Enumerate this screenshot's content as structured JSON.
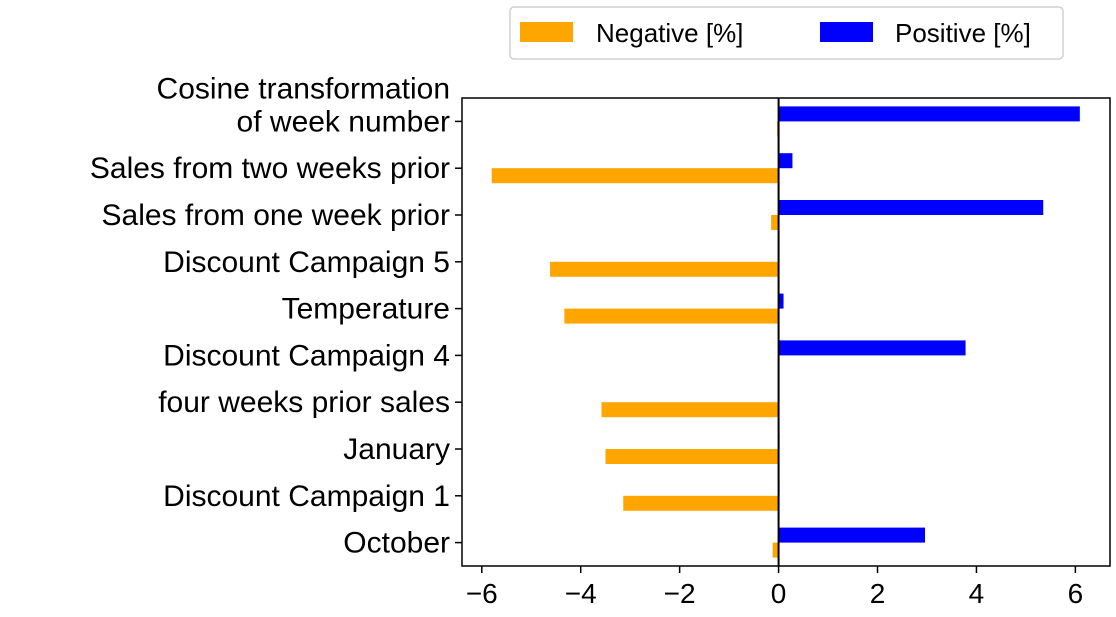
{
  "chart_data": {
    "type": "bar",
    "orientation": "horizontal",
    "categories": [
      "Cosine transformation\nof week number",
      "Sales from two weeks prior",
      "Sales from one week prior",
      "Discount Campaign 5",
      "Temperature",
      "Discount Campaign 4",
      "four weeks prior sales",
      "January",
      "Discount Campaign 1",
      "October"
    ],
    "series": [
      {
        "name": "Negative [%]",
        "color": "#FFA500",
        "values": [
          -0.03,
          -5.8,
          -0.15,
          -4.62,
          -4.33,
          0.0,
          -3.58,
          -3.5,
          -3.14,
          -0.12
        ]
      },
      {
        "name": "Positive [%]",
        "color": "#0000FF",
        "values": [
          6.09,
          0.28,
          5.35,
          0.0,
          0.1,
          3.78,
          0.0,
          0.02,
          0.02,
          2.96
        ]
      }
    ],
    "xlim": [
      -6.4,
      6.7
    ],
    "xticks": [
      -6,
      -4,
      -2,
      0,
      2,
      4,
      6
    ],
    "xtick_labels": [
      "−6",
      "−4",
      "−2",
      "0",
      "2",
      "4",
      "6"
    ],
    "legend_position": "top",
    "zero_line": true,
    "grid": false
  }
}
